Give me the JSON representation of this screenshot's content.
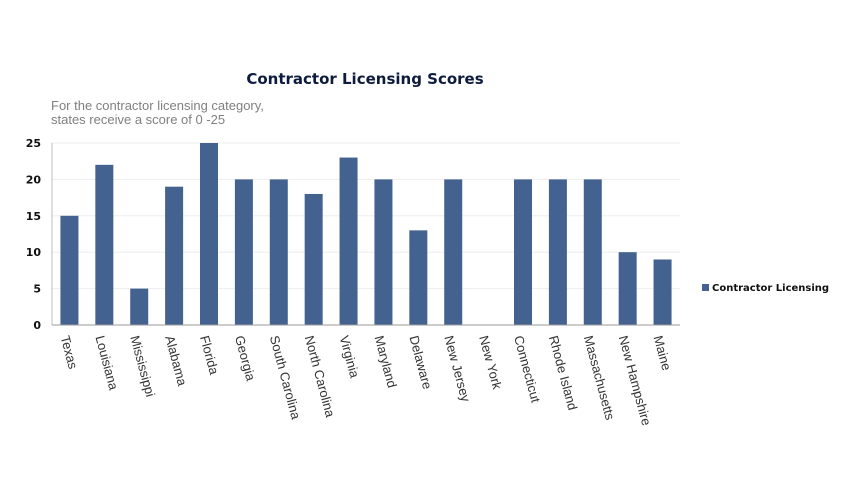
{
  "chart_data": {
    "type": "bar",
    "title": "Contractor Licensing Scores",
    "subtitle_lines": [
      "For the contractor licensing category,",
      "states receive a score of 0 -25"
    ],
    "xlabel": "",
    "ylabel": "",
    "ylim": [
      0,
      25
    ],
    "yticks": [
      0,
      5,
      10,
      15,
      20,
      25
    ],
    "grid": true,
    "legend_position": "right",
    "categories": [
      "Texas",
      "Louisiana",
      "Mississippi",
      "Alabama",
      "Florida",
      "Georgia",
      "South Carolina",
      "North Carolina",
      "Virginia",
      "Maryland",
      "Delaware",
      "New Jersey",
      "New York",
      "Connecticut",
      "Rhode Island",
      "Massachusetts",
      "New Hampshire",
      "Maine"
    ],
    "series": [
      {
        "name": "Contractor Licensing",
        "color": "#43628f",
        "values": [
          15,
          22,
          5,
          19,
          25,
          20,
          20,
          18,
          23,
          20,
          13,
          20,
          0,
          20,
          20,
          20,
          10,
          9
        ]
      }
    ]
  }
}
